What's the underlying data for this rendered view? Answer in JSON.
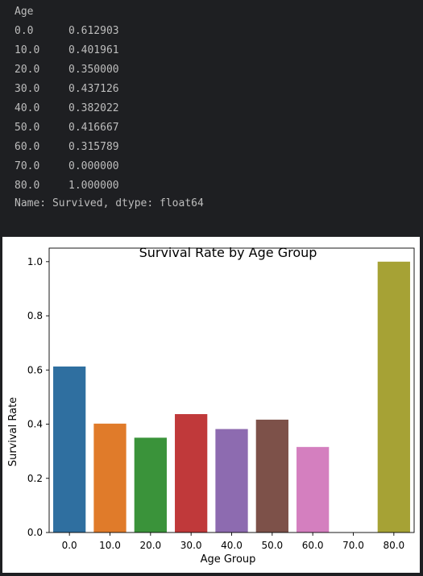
{
  "output": {
    "header": "Age",
    "rows": [
      {
        "index": "0.0",
        "value": "0.612903"
      },
      {
        "index": "10.0",
        "value": "0.401961"
      },
      {
        "index": "20.0",
        "value": "0.350000"
      },
      {
        "index": "30.0",
        "value": "0.437126"
      },
      {
        "index": "40.0",
        "value": "0.382022"
      },
      {
        "index": "50.0",
        "value": "0.416667"
      },
      {
        "index": "60.0",
        "value": "0.315789"
      },
      {
        "index": "70.0",
        "value": "0.000000"
      },
      {
        "index": "80.0",
        "value": "1.000000"
      }
    ],
    "footer": "Name: Survived, dtype: float64"
  },
  "chart_data": {
    "type": "bar",
    "title": "Survival Rate by Age Group",
    "xlabel": "Age Group",
    "ylabel": "Survival Rate",
    "categories": [
      "0.0",
      "10.0",
      "20.0",
      "30.0",
      "40.0",
      "50.0",
      "60.0",
      "70.0",
      "80.0"
    ],
    "values": [
      0.612903,
      0.401961,
      0.35,
      0.437126,
      0.382022,
      0.416667,
      0.315789,
      0.0,
      1.0
    ],
    "colors": [
      "#2f6fa0",
      "#e07b2a",
      "#3a933a",
      "#c0393a",
      "#8d6bb0",
      "#7d5149",
      "#d47fbf",
      "#7f7f7f",
      "#a6a235"
    ],
    "yticks": [
      "0.0",
      "0.2",
      "0.4",
      "0.6",
      "0.8",
      "1.0"
    ],
    "ylim": [
      0,
      1.05
    ],
    "grid": false
  }
}
